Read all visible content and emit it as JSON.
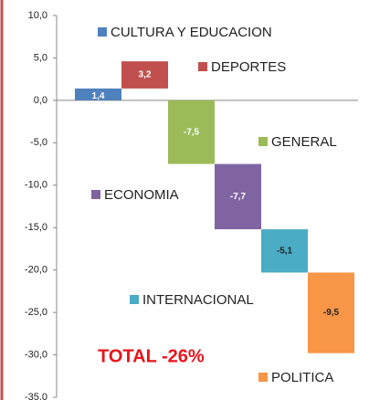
{
  "chart_data": {
    "type": "waterfall",
    "categories": [
      "CULTURA Y EDUCACION",
      "DEPORTES",
      "GENERAL",
      "ECONOMIA",
      "INTERNACIONAL",
      "POLITICA"
    ],
    "values": [
      1.4,
      3.2,
      -7.5,
      -7.7,
      -5.1,
      -9.5
    ],
    "value_labels": [
      "1,4",
      "3,2",
      "-7,5",
      "-7,7",
      "-5,1",
      "-9,5"
    ],
    "colors": [
      "#4f81bd",
      "#c0504d",
      "#9bbb59",
      "#8064a2",
      "#4bacc6",
      "#f79646"
    ],
    "ylim": [
      -35,
      10
    ],
    "yticks": [
      {
        "value": 10,
        "label": "10,0"
      },
      {
        "value": 5,
        "label": "5,0"
      },
      {
        "value": 0,
        "label": "0,0"
      },
      {
        "value": -5,
        "label": "-5,0"
      },
      {
        "value": -10,
        "label": "-10,0"
      },
      {
        "value": -15,
        "label": "-15,0"
      },
      {
        "value": -20,
        "label": "-20,0"
      },
      {
        "value": -25,
        "label": "-25,0"
      },
      {
        "value": -30,
        "label": "-30,0"
      },
      {
        "value": -35,
        "label": "-35,0"
      }
    ],
    "annotation": "TOTAL -26%"
  }
}
